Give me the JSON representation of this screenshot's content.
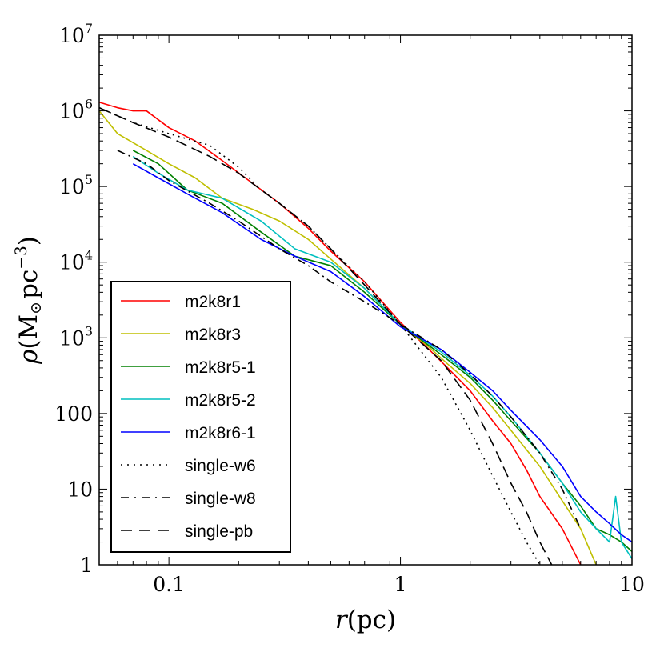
{
  "chart_data": {
    "type": "line",
    "xscale": "log",
    "yscale": "log",
    "xlim": [
      0.05,
      10
    ],
    "ylim": [
      1,
      10000000
    ],
    "xlabel": {
      "var": "r",
      "unit": "(pc)"
    },
    "ylabel": {
      "var": "ρ",
      "unit_pre": "(M",
      "sub": "⊙",
      "unit_mid": "pc",
      "exp": "−3",
      "unit_post": ")"
    },
    "xticks": [
      {
        "value": 0.1,
        "label": "0.1"
      },
      {
        "value": 1,
        "label": "1"
      },
      {
        "value": 10,
        "label": "10"
      }
    ],
    "yticks": [
      {
        "value": 1,
        "label": "1"
      },
      {
        "value": 10,
        "label": "10"
      },
      {
        "value": 100,
        "label": "100"
      },
      {
        "value": 1000,
        "base": "10",
        "exp": "3"
      },
      {
        "value": 10000,
        "base": "10",
        "exp": "4"
      },
      {
        "value": 100000,
        "base": "10",
        "exp": "5"
      },
      {
        "value": 1000000,
        "base": "10",
        "exp": "6"
      },
      {
        "value": 10000000,
        "base": "10",
        "exp": "7"
      }
    ],
    "legend_position": "lower-left",
    "series": [
      {
        "name": "m2k8r1",
        "color": "#ff0000",
        "dash": "solid",
        "x": [
          0.05,
          0.06,
          0.07,
          0.08,
          0.1,
          0.13,
          0.17,
          0.23,
          0.3,
          0.4,
          0.5,
          0.7,
          1.0,
          1.3,
          1.6,
          2.0,
          2.5,
          3.0,
          3.5,
          4.0,
          5.0,
          6.0
        ],
        "y": [
          1300000,
          1100000,
          1000000,
          1000000,
          600000,
          400000,
          220000,
          110000,
          60000,
          28000,
          14000,
          5500,
          1600,
          750,
          400,
          200,
          80,
          40,
          18,
          8,
          3,
          1
        ]
      },
      {
        "name": "m2k8r3",
        "color": "#bfbf00",
        "dash": "solid",
        "x": [
          0.05,
          0.06,
          0.08,
          0.1,
          0.13,
          0.17,
          0.23,
          0.3,
          0.4,
          0.5,
          0.7,
          1.0,
          1.3,
          1.6,
          2.0,
          2.5,
          3.0,
          4.0,
          5.0,
          6.0,
          7.0
        ],
        "y": [
          1000000,
          500000,
          300000,
          200000,
          130000,
          70000,
          50000,
          35000,
          20000,
          11000,
          4500,
          1500,
          800,
          450,
          250,
          120,
          60,
          20,
          7,
          3,
          1
        ]
      },
      {
        "name": "m2k8r5-1",
        "color": "#008000",
        "dash": "solid",
        "x": [
          0.07,
          0.09,
          0.12,
          0.17,
          0.25,
          0.35,
          0.5,
          0.7,
          1.0,
          1.5,
          2.0,
          2.5,
          3.0,
          4.0,
          5.0,
          6.0,
          7.0,
          8.0,
          9.0,
          10.0
        ],
        "y": [
          300000,
          200000,
          90000,
          60000,
          25000,
          12000,
          9000,
          4000,
          1500,
          600,
          300,
          150,
          80,
          30,
          12,
          6,
          3,
          2.5,
          2,
          1.5
        ]
      },
      {
        "name": "m2k8r5-2",
        "color": "#00bfbf",
        "dash": "solid",
        "x": [
          0.07,
          0.09,
          0.12,
          0.17,
          0.25,
          0.35,
          0.5,
          0.7,
          1.0,
          1.5,
          2.0,
          2.5,
          3.0,
          4.0,
          5.0,
          6.0,
          7.0,
          8.0,
          8.5,
          9.0,
          10.0
        ],
        "y": [
          250000,
          150000,
          90000,
          70000,
          35000,
          15000,
          10000,
          4500,
          1500,
          650,
          320,
          170,
          90,
          30,
          12,
          5,
          3,
          2,
          8,
          2,
          1.2
        ]
      },
      {
        "name": "m2k8r6-1",
        "color": "#0000ff",
        "dash": "solid",
        "x": [
          0.07,
          0.09,
          0.12,
          0.17,
          0.25,
          0.35,
          0.5,
          0.7,
          1.0,
          1.5,
          2.0,
          2.5,
          3.0,
          4.0,
          5.0,
          6.0,
          7.0,
          8.0,
          9.0,
          10.0
        ],
        "y": [
          200000,
          130000,
          80000,
          45000,
          20000,
          12000,
          7500,
          3500,
          1400,
          700,
          350,
          200,
          110,
          45,
          20,
          8,
          5,
          3.5,
          2.5,
          2
        ]
      },
      {
        "name": "single-w6",
        "color": "#000000",
        "dash": "dotted",
        "x": [
          0.05,
          0.07,
          0.1,
          0.15,
          0.2,
          0.25,
          0.3,
          0.4,
          0.5,
          0.7,
          1.0,
          1.5,
          2.0,
          2.5,
          3.0,
          3.5,
          4.0
        ],
        "y": [
          1100000,
          700000,
          500000,
          350000,
          180000,
          90000,
          60000,
          30000,
          15000,
          5500,
          1500,
          300,
          60,
          15,
          5,
          2,
          1
        ]
      },
      {
        "name": "single-w8",
        "color": "#000000",
        "dash": "dashdot",
        "x": [
          0.06,
          0.08,
          0.1,
          0.15,
          0.2,
          0.3,
          0.4,
          0.5,
          0.7,
          1.0,
          1.5,
          2.0,
          2.5,
          3.0,
          4.0,
          5.0,
          6.0
        ],
        "y": [
          300000,
          200000,
          120000,
          60000,
          35000,
          15000,
          9000,
          5500,
          3000,
          1500,
          700,
          330,
          170,
          90,
          30,
          10,
          3
        ]
      },
      {
        "name": "single-pb",
        "color": "#000000",
        "dash": "dashed",
        "x": [
          0.05,
          0.07,
          0.1,
          0.15,
          0.2,
          0.3,
          0.4,
          0.5,
          0.7,
          1.0,
          1.5,
          2.0,
          2.5,
          3.0,
          3.5,
          4.0,
          4.5
        ],
        "y": [
          1100000,
          700000,
          450000,
          250000,
          150000,
          60000,
          30000,
          15000,
          5000,
          1500,
          500,
          150,
          40,
          12,
          5,
          2,
          1
        ]
      }
    ]
  }
}
